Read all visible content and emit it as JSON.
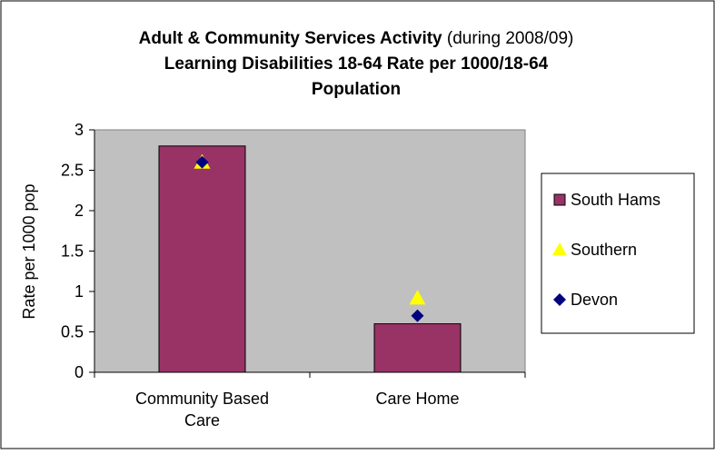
{
  "chart_data": {
    "type": "bar",
    "title": {
      "line1_bold": "Adult & Community Services Activity",
      "line1_normal": " (during 2008/09)",
      "line2": "Learning Disabilities 18-64 Rate per 1000/18-64",
      "line3": "Population"
    },
    "ylabel": "Rate per 1000 pop",
    "xlabel": "",
    "categories": [
      [
        "Community Based",
        "Care"
      ],
      [
        "Care Home"
      ]
    ],
    "ylim": [
      0,
      3
    ],
    "yticks": [
      "0",
      "0.5",
      "1",
      "1.5",
      "2",
      "2.5",
      "3"
    ],
    "series": [
      {
        "name": "South Hams",
        "kind": "bar",
        "marker": "square",
        "color": "#993366",
        "values": [
          2.8,
          0.6
        ]
      },
      {
        "name": "Southern",
        "kind": "marker",
        "marker": "triangle",
        "color": "#ffff00",
        "values": [
          2.6,
          0.92
        ]
      },
      {
        "name": "Devon",
        "kind": "marker",
        "marker": "diamond",
        "color": "#000080",
        "values": [
          2.6,
          0.7
        ]
      }
    ],
    "grid": false,
    "legend": "right",
    "plot_background": "#c0c0c0"
  }
}
